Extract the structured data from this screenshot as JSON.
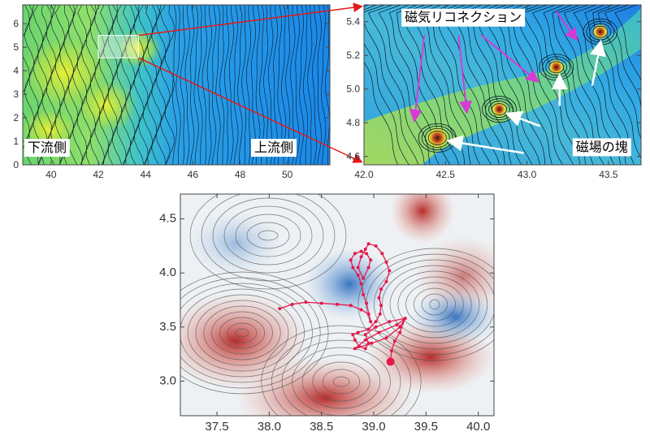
{
  "chart_data": [
    {
      "type": "heatmap",
      "panel": "top-left",
      "x_ticks": [
        "40",
        "42",
        "44",
        "46",
        "48",
        "50"
      ],
      "y_ticks": [
        "0",
        "1",
        "2",
        "3",
        "4",
        "5",
        "6"
      ],
      "xlim": [
        38.8,
        51.8
      ],
      "ylim": [
        0,
        6.8
      ],
      "annotations": [
        {
          "text": "下流側",
          "x": 39.0,
          "y": 0.55
        },
        {
          "text": "上流側",
          "x": 48.6,
          "y": 0.55
        }
      ],
      "zoom_box": {
        "x0": 42.0,
        "x1": 43.7,
        "y0": 4.55,
        "y1": 5.5
      }
    },
    {
      "type": "heatmap",
      "panel": "top-right",
      "x_ticks": [
        "42.0",
        "42.5",
        "43.0",
        "43.5"
      ],
      "y_ticks": [
        "4.6",
        "4.8",
        "5.0",
        "5.2",
        "5.4"
      ],
      "xlim": [
        42.0,
        43.7
      ],
      "ylim": [
        4.55,
        5.5
      ],
      "annotations": [
        {
          "text": "磁気リコネクション",
          "x": 42.25,
          "y": 5.4
        },
        {
          "text": "磁場の塊",
          "x": 43.3,
          "y": 4.63
        }
      ],
      "islands": [
        {
          "x": 42.45,
          "y": 4.71
        },
        {
          "x": 42.83,
          "y": 4.88
        },
        {
          "x": 43.18,
          "y": 5.13
        },
        {
          "x": 43.45,
          "y": 5.34
        }
      ]
    },
    {
      "type": "heatmap",
      "panel": "bottom",
      "x_ticks": [
        "37.5",
        "38.0",
        "38.5",
        "39.0",
        "39.5",
        "40.0"
      ],
      "y_ticks": [
        "3.0",
        "3.5",
        "4.0",
        "4.5"
      ],
      "xlim": [
        37.15,
        40.15
      ],
      "ylim": [
        2.68,
        4.73
      ],
      "trajectory": [
        [
          38.1,
          3.67
        ],
        [
          38.22,
          3.71
        ],
        [
          38.35,
          3.73
        ],
        [
          38.5,
          3.72
        ],
        [
          38.65,
          3.71
        ],
        [
          38.78,
          3.7
        ],
        [
          38.88,
          3.66
        ],
        [
          38.95,
          3.62
        ],
        [
          38.97,
          3.55
        ],
        [
          38.93,
          3.72
        ],
        [
          38.9,
          3.8
        ],
        [
          38.88,
          3.9
        ],
        [
          38.85,
          3.98
        ],
        [
          38.8,
          4.05
        ],
        [
          38.78,
          4.12
        ],
        [
          38.82,
          4.18
        ],
        [
          38.88,
          4.2
        ],
        [
          38.93,
          4.18
        ],
        [
          38.97,
          4.12
        ],
        [
          38.95,
          4.05
        ],
        [
          38.9,
          3.95
        ],
        [
          38.85,
          4.05
        ],
        [
          38.88,
          4.15
        ],
        [
          38.92,
          4.22
        ],
        [
          38.95,
          4.27
        ],
        [
          39.02,
          4.25
        ],
        [
          39.08,
          4.18
        ],
        [
          39.12,
          4.1
        ],
        [
          39.15,
          4.02
        ],
        [
          39.12,
          3.92
        ],
        [
          39.07,
          3.85
        ],
        [
          39.05,
          3.77
        ],
        [
          39.07,
          3.7
        ],
        [
          39.06,
          3.62
        ],
        [
          39.02,
          3.55
        ],
        [
          38.95,
          3.48
        ],
        [
          38.85,
          3.45
        ],
        [
          38.8,
          3.43
        ],
        [
          38.82,
          3.38
        ],
        [
          38.86,
          3.32
        ],
        [
          38.92,
          3.3
        ],
        [
          38.95,
          3.35
        ],
        [
          38.92,
          3.43
        ],
        [
          39.02,
          3.5
        ],
        [
          39.15,
          3.55
        ],
        [
          39.3,
          3.58
        ],
        [
          39.22,
          3.52
        ],
        [
          39.05,
          3.45
        ],
        [
          38.92,
          3.38
        ],
        [
          38.82,
          3.3
        ],
        [
          38.98,
          3.35
        ],
        [
          39.12,
          3.4
        ],
        [
          39.25,
          3.5
        ],
        [
          39.3,
          3.58
        ],
        [
          39.25,
          3.45
        ],
        [
          39.2,
          3.37
        ],
        [
          39.17,
          3.28
        ],
        [
          39.16,
          3.18
        ]
      ],
      "trajectory_end": [
        39.16,
        3.18
      ]
    }
  ],
  "colors": {
    "trajectory": "#e5194b",
    "zoom_line": "#e21a1a",
    "magenta_arrow": "#d63bd6",
    "white_arrow": "#ffffff",
    "heat_red": "#c1392b",
    "heat_blue": "#3a79c0"
  }
}
